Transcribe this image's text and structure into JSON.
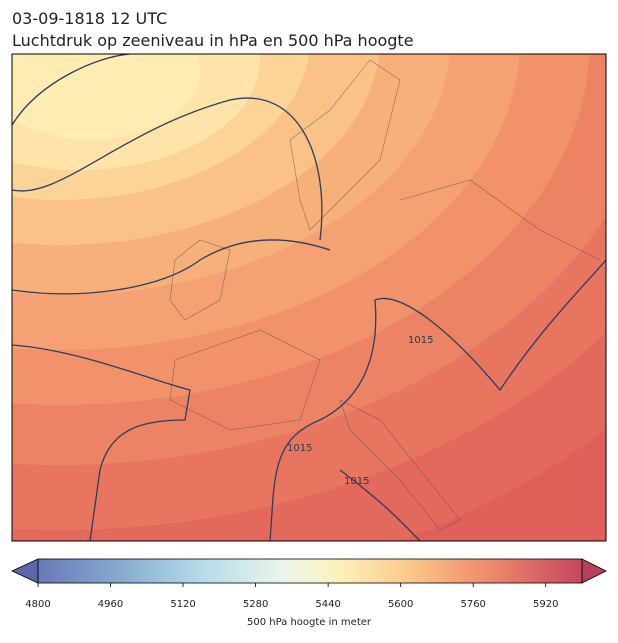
{
  "header": {
    "date": "03-09-1818 12 UTC",
    "title": "Luchtdruk op zeeniveau in hPa en 500 hPa hoogte"
  },
  "map": {
    "contour_labels": [
      "1015",
      "1015",
      "1015"
    ]
  },
  "colorbar": {
    "lim": [
      4800,
      6000
    ],
    "ticks": [
      4800,
      4960,
      5120,
      5280,
      5440,
      5600,
      5760,
      5920
    ],
    "label": "500 hPa hoogte in meter"
  }
}
